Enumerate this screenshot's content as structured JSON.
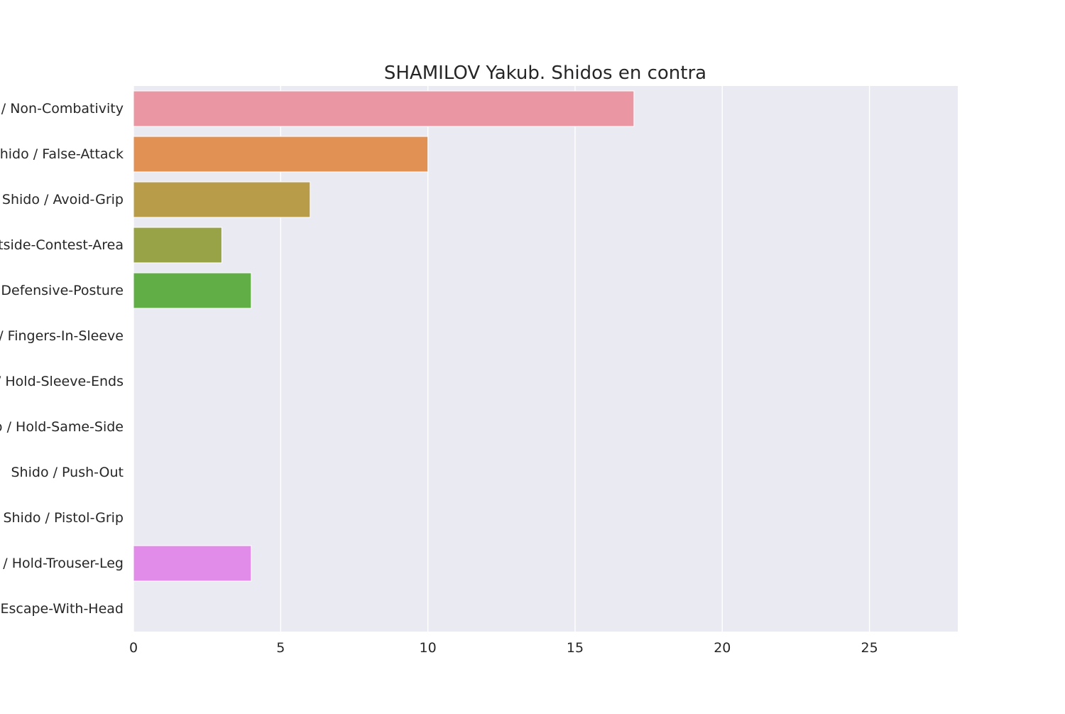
{
  "chart_data": {
    "type": "bar",
    "orientation": "horizontal",
    "title": "SHAMILOV Yakub. Shidos en contra",
    "xlabel": "",
    "ylabel": "",
    "xlim": [
      0,
      28
    ],
    "xticks": [
      0,
      5,
      10,
      15,
      20,
      25
    ],
    "grid": true,
    "categories": [
      "Shido / Non-Combativity",
      "Shido / False-Attack",
      "Shido / Avoid-Grip",
      "Shido / Outside-Contest-Area",
      "Shido / Defensive-Posture",
      "Shido / Fingers-In-Sleeve",
      "Shido / Hold-Sleeve-Ends",
      "Shido / Hold-Same-Side",
      "Shido / Push-Out",
      "Shido / Pistol-Grip",
      "Shido / Hold-Trouser-Leg",
      "Shido / Escape-With-Head"
    ],
    "values": [
      17,
      10,
      6,
      3,
      4,
      0,
      0,
      0,
      0,
      0,
      4,
      0
    ],
    "colors": [
      "#ea96a3",
      "#e19153",
      "#b89c49",
      "#98a246",
      "#61ae47",
      "#4fb0a4",
      "#53abc3",
      "#5ea6cf",
      "#8d98e6",
      "#b48be8",
      "#e08ce8",
      "#ec8fc3"
    ],
    "background": "#eaeaf2",
    "gridline_color": "#ffffff"
  }
}
